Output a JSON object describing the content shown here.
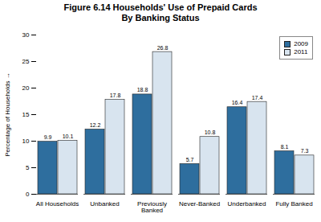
{
  "chart_data": {
    "type": "bar",
    "title": "Figure 6.14  Households' Use of Prepaid Cards\nBy Banking Status",
    "ylabel": "Percentage of Households",
    "categories": [
      "All Households",
      "Unbanked",
      "Previously\nBanked",
      "Never-Banked",
      "Underbanked",
      "Fully Banked"
    ],
    "series": [
      {
        "name": "2009",
        "color": "#2E6E9E",
        "values": [
          9.9,
          12.2,
          18.8,
          5.7,
          16.4,
          8.1
        ]
      },
      {
        "name": "2011",
        "color": "#D8E4EF",
        "values": [
          10.1,
          17.8,
          26.8,
          10.8,
          17.4,
          7.3
        ]
      }
    ],
    "ylim": [
      0,
      30
    ],
    "yticks": [
      0,
      5,
      10,
      15,
      20,
      25,
      30
    ],
    "legend": "upper right",
    "data_labels": true
  }
}
